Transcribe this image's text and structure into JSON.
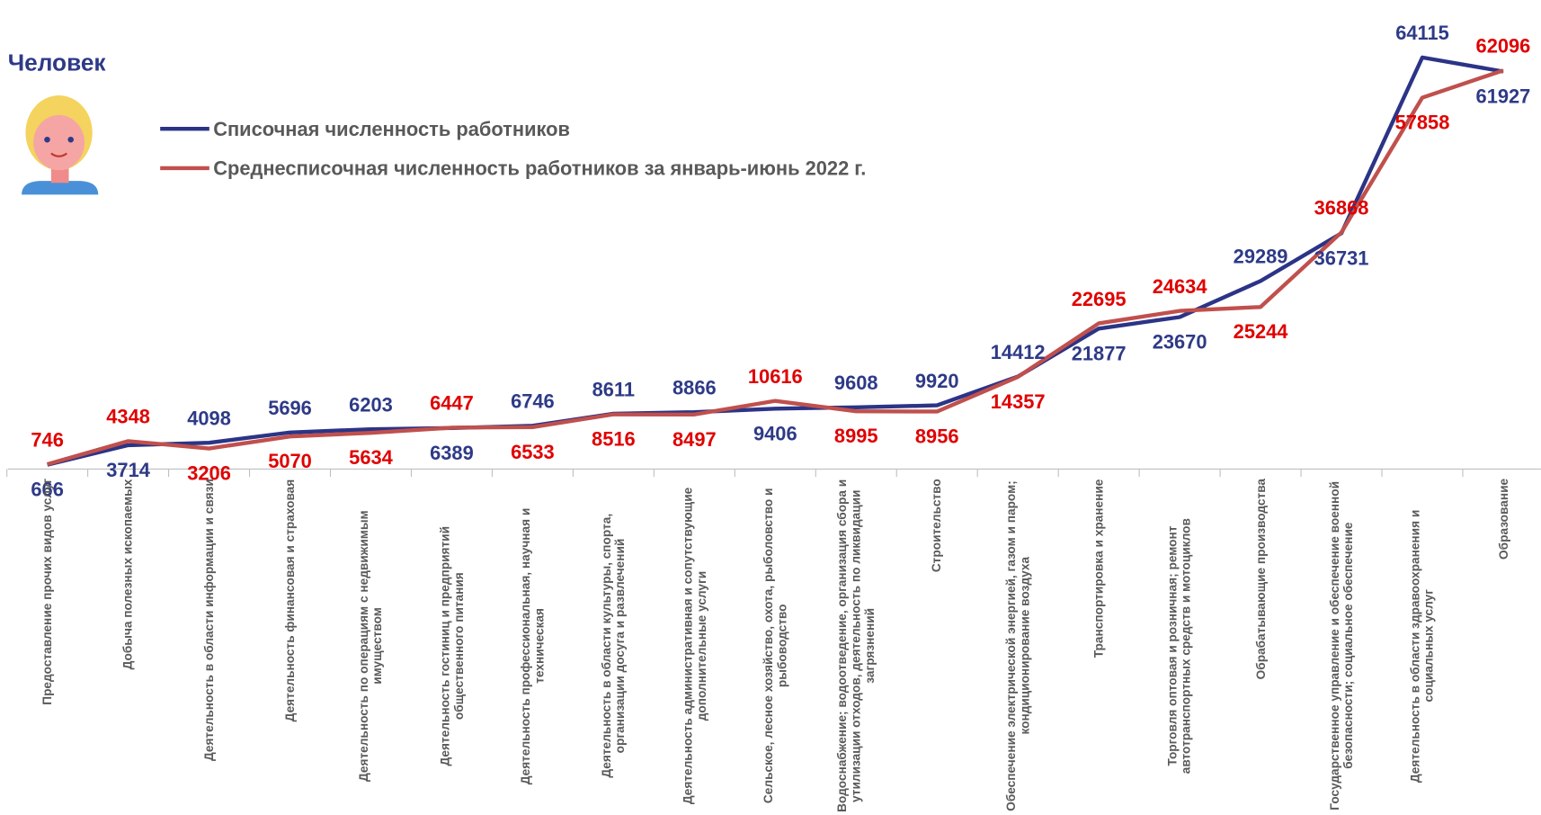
{
  "chart_data": {
    "type": "line",
    "title": "Человек",
    "categories": [
      "Предоставление прочих видов услуг",
      "Добыча полезных ископаемых",
      "Деятельность в области информации и связи",
      "Деятельность финансовая и страховая",
      "Деятельность по операциям с недвижимым имуществом",
      "Деятельность гостиниц и предприятий общественного питания",
      "Деятельность профессиональная, научная и техническая",
      "Деятельность в области культуры, спорта, организации досуга и развлечений",
      "Деятельность административная и сопутствующие дополнительные услуги",
      "Сельское, лесное хозяйство, охота, рыболовство и рыбоводство",
      "Водоснабжение; водоотведение, организация сбора и утилизации отходов, деятельность по ликвидации загрязнений",
      "Строительство",
      "Обеспечение электрической энергией, газом и паром; кондиционирование воздуха",
      "Транспортировка и хранение",
      "Торговля оптовая и розничная; ремонт автотранспортных средств и мотоциклов",
      "Обрабатывающие производства",
      "Государственное управление и обеспечение военной безопасности; социальное обеспечение",
      "Деятельность в области здравоохранения и социальных услуг",
      "Образование"
    ],
    "series": [
      {
        "name": "Списочная численность работников",
        "color": "#2b3486",
        "label_color": "#2e3a87",
        "values": [
          666,
          3714,
          4098,
          5696,
          6203,
          6389,
          6746,
          8611,
          8866,
          9406,
          9608,
          9920,
          14412,
          21877,
          23670,
          29289,
          36731,
          64115,
          61927
        ]
      },
      {
        "name": "Среднесписочная численность работников за январь-июнь 2022 г.",
        "color": "#c0504d",
        "label_color": "#e00000",
        "values": [
          746,
          4348,
          3206,
          5070,
          5634,
          6447,
          6533,
          8516,
          8497,
          10616,
          8995,
          8956,
          14357,
          22695,
          24634,
          25244,
          36868,
          57858,
          62096
        ]
      }
    ],
    "ylim": [
      0,
      70000
    ]
  }
}
